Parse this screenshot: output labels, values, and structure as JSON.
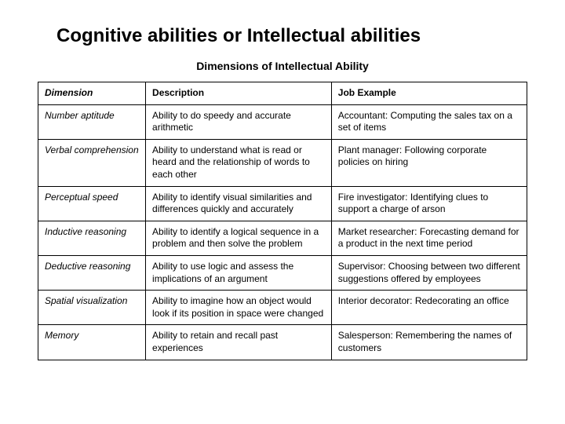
{
  "page": {
    "title": "Cognitive abilities or Intellectual abilities",
    "subtitle": "Dimensions of Intellectual Ability",
    "title_fontsize": 24,
    "subtitle_fontsize": 14,
    "background_color": "#ffffff",
    "text_color": "#000000",
    "border_color": "#000000"
  },
  "table": {
    "type": "table",
    "columns": [
      {
        "key": "dimension",
        "label": "Dimension",
        "width_pct": 22,
        "italic": true
      },
      {
        "key": "description",
        "label": "Description",
        "width_pct": 38,
        "italic": false
      },
      {
        "key": "job_example",
        "label": "Job Example",
        "width_pct": 40,
        "italic": false
      }
    ],
    "header_fontweight": "bold",
    "cell_fontsize": 12,
    "rows": [
      {
        "dimension": "Number aptitude",
        "description": "Ability to do speedy and accurate arithmetic",
        "job_example": "Accountant: Computing the sales tax on a set of items"
      },
      {
        "dimension": "Verbal comprehension",
        "description": "Ability to understand what is read or heard and the relationship of words to each other",
        "job_example": "Plant manager: Following corporate policies on hiring"
      },
      {
        "dimension": "Perceptual speed",
        "description": "Ability to identify visual similarities and differences quickly and accurately",
        "job_example": "Fire investigator: Identifying clues to support a charge of arson"
      },
      {
        "dimension": "Inductive reasoning",
        "description": "Ability to identify a logical sequence in a problem and then solve the problem",
        "job_example": "Market researcher: Forecasting demand for a product in the next time period"
      },
      {
        "dimension": "Deductive reasoning",
        "description": "Ability to use logic and assess the implications of an argument",
        "job_example": "Supervisor: Choosing between two different suggestions offered by employees"
      },
      {
        "dimension": "Spatial visualization",
        "description": "Ability to imagine how an object would look if its position in space were changed",
        "job_example": "Interior decorator: Redecorating an office"
      },
      {
        "dimension": "Memory",
        "description": "Ability to retain and recall past experiences",
        "job_example": "Salesperson: Remembering the names of customers"
      }
    ]
  }
}
